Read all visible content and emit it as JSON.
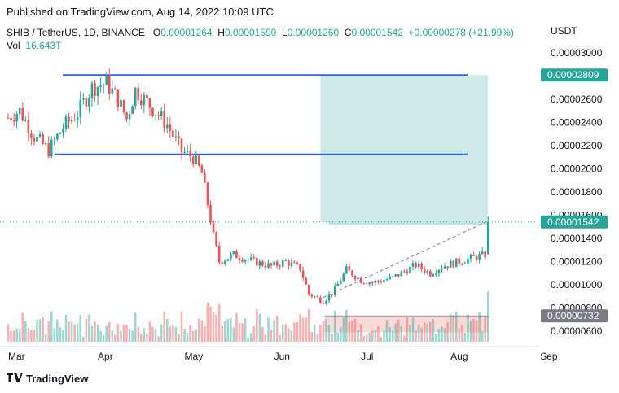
{
  "banner": "Published on TradingView.com, Aug 14, 2022 10:09 UTC",
  "legend": {
    "symbol": "SHIB / TetherUS, 1D, BINANCE",
    "o_label": "O",
    "o_value": "0.00001264",
    "h_label": "H",
    "h_value": "0.00001590",
    "l_label": "L",
    "l_value": "0.00001260",
    "c_label": "C",
    "c_value": "0.00001542",
    "change": "+0.00000278 (+21.99%)",
    "vol_label": "Vol",
    "vol_value": "16.643T"
  },
  "currency_label": "USDT",
  "footer_brand": "TradingView",
  "colors": {
    "up": "#26a69a",
    "down": "#ef5350",
    "hline": "#2962ff",
    "profit_zone": "#26a69a",
    "loss_zone": "#ef5350"
  },
  "chart_data": {
    "type": "candlestick",
    "y_ticks": [
      "0.00003000",
      "0.00002800",
      "0.00002600",
      "0.00002400",
      "0.00002200",
      "0.00002000",
      "0.00001800",
      "0.00001600",
      "0.00001400",
      "0.00001200",
      "0.00001000",
      "0.00000800",
      "0.00000600"
    ],
    "y_tick_values": [
      3e-05,
      2.8e-05,
      2.6e-05,
      2.4e-05,
      2.2e-05,
      2e-05,
      1.8e-05,
      1.6e-05,
      1.4e-05,
      1.2e-05,
      1e-05,
      8e-06,
      6e-06
    ],
    "x_ticks": [
      "Mar",
      "Apr",
      "May",
      "Jun",
      "Jul",
      "Aug",
      "Sep"
    ],
    "x_tick_dates": [
      "2022-03-01",
      "2022-04-01",
      "2022-05-01",
      "2022-06-01",
      "2022-07-01",
      "2022-08-01",
      "2022-09-01"
    ],
    "horizontal_levels": [
      2.809e-05,
      2.125e-05
    ],
    "price_badges": [
      {
        "label": "0.00002809",
        "value": 2.809e-05,
        "kind": "target"
      },
      {
        "label": "0.00001542",
        "value": 1.542e-05,
        "kind": "last"
      },
      {
        "label": "0.00000732",
        "value": 7.32e-06,
        "kind": "stop"
      }
    ],
    "position_tool": {
      "start": "2022-06-17",
      "end": "2022-08-14",
      "entry": 1.542e-05,
      "target": 2.809e-05,
      "stop": 7.32e-06
    },
    "ohlc_dates_start": "2022-03-01",
    "ohlc_anchor_closes": [
      [
        "2022-03-01",
        2.44e-05
      ],
      [
        "2022-03-05",
        2.5e-05
      ],
      [
        "2022-03-10",
        2.28e-05
      ],
      [
        "2022-03-15",
        2.16e-05
      ],
      [
        "2022-03-20",
        2.36e-05
      ],
      [
        "2022-03-25",
        2.48e-05
      ],
      [
        "2022-03-30",
        2.7e-05
      ],
      [
        "2022-04-04",
        2.74e-05
      ],
      [
        "2022-04-08",
        2.6e-05
      ],
      [
        "2022-04-11",
        2.43e-05
      ],
      [
        "2022-04-14",
        2.68e-05
      ],
      [
        "2022-04-20",
        2.52e-05
      ],
      [
        "2022-04-25",
        2.38e-05
      ],
      [
        "2022-04-30",
        2.15e-05
      ],
      [
        "2022-05-04",
        2.1e-05
      ],
      [
        "2022-05-07",
        1.96e-05
      ],
      [
        "2022-05-09",
        1.7e-05
      ],
      [
        "2022-05-11",
        1.42e-05
      ],
      [
        "2022-05-13",
        1.2e-05
      ],
      [
        "2022-05-18",
        1.26e-05
      ],
      [
        "2022-05-25",
        1.2e-05
      ],
      [
        "2022-05-31",
        1.16e-05
      ],
      [
        "2022-06-05",
        1.2e-05
      ],
      [
        "2022-06-10",
        1.14e-05
      ],
      [
        "2022-06-13",
        9.2e-06
      ],
      [
        "2022-06-18",
        8.6e-06
      ],
      [
        "2022-06-22",
        9.6e-06
      ],
      [
        "2022-06-26",
        1.13e-05
      ],
      [
        "2022-07-01",
        1.04e-05
      ],
      [
        "2022-07-05",
        1.02e-05
      ],
      [
        "2022-07-12",
        1.06e-05
      ],
      [
        "2022-07-20",
        1.17e-05
      ],
      [
        "2022-07-25",
        1.1e-05
      ],
      [
        "2022-07-29",
        1.16e-05
      ],
      [
        "2022-08-04",
        1.2e-05
      ],
      [
        "2022-08-10",
        1.24e-05
      ],
      [
        "2022-08-13",
        1.26e-05
      ],
      [
        "2022-08-14",
        1.542e-05
      ]
    ]
  }
}
